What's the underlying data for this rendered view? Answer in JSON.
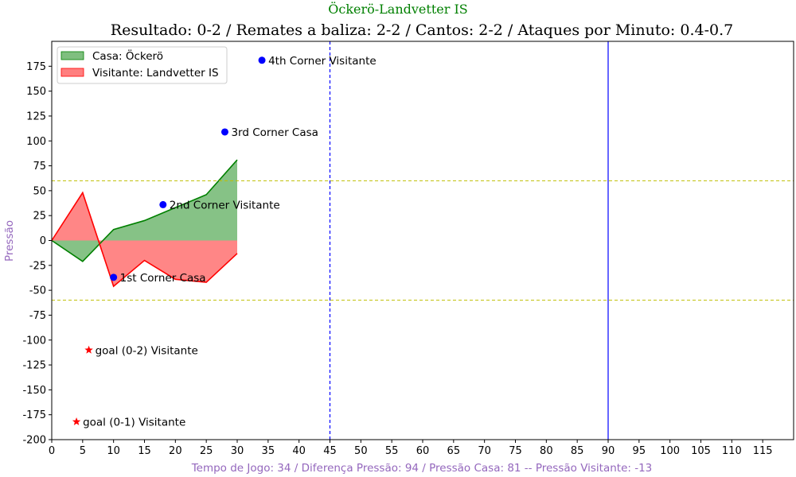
{
  "chart_data": {
    "type": "area",
    "suptitle": "Öckerö-Landvetter IS",
    "title": "Resultado: 0-2 / Remates a baliza: 2-2 / Cantos: 2-2 / Ataques por Minuto: 0.4-0.7",
    "xlabel": "Tempo de Jogo: 34 / Diferença Pressão: 94 / Pressão Casa: 81 -- Pressão Visitante: -13",
    "ylabel": "Pressão",
    "xlim": [
      0,
      120
    ],
    "ylim": [
      -200,
      200
    ],
    "xticks": [
      0,
      5,
      10,
      15,
      20,
      25,
      30,
      35,
      40,
      45,
      50,
      55,
      60,
      65,
      70,
      75,
      80,
      85,
      90,
      95,
      100,
      105,
      110,
      115
    ],
    "yticks": [
      -200,
      -175,
      -150,
      -125,
      -100,
      -75,
      -50,
      -25,
      0,
      25,
      50,
      75,
      100,
      125,
      150,
      175
    ],
    "x": [
      0,
      5,
      10,
      15,
      20,
      25,
      30
    ],
    "series": [
      {
        "name": "Casa: Öckerö",
        "values": [
          0,
          -21,
          11,
          20,
          33,
          46,
          81
        ],
        "color": "#008000",
        "fill": "#7fbf7f"
      },
      {
        "name": "Visitante: Landvetter IS",
        "values": [
          0,
          48,
          -46,
          -20,
          -39,
          -42,
          -13
        ],
        "color": "#ff0000",
        "fill": "#ff7f7f"
      }
    ],
    "hlines": [
      {
        "y": 60,
        "color": "#bfbf00",
        "style": "dashed"
      },
      {
        "y": -60,
        "color": "#bfbf00",
        "style": "dashed"
      }
    ],
    "vlines": [
      {
        "x": 45,
        "color": "#0000ff",
        "style": "dashed"
      },
      {
        "x": 90,
        "color": "#0000ff",
        "style": "solid"
      }
    ],
    "events": [
      {
        "x": 34,
        "y": 181,
        "label": "4th Corner Visitante",
        "marker": "circle",
        "color": "#0000ff"
      },
      {
        "x": 28,
        "y": 109,
        "label": "3rd Corner Casa",
        "marker": "circle",
        "color": "#0000ff"
      },
      {
        "x": 18,
        "y": 36,
        "label": "2nd Corner Visitante",
        "marker": "circle",
        "color": "#0000ff"
      },
      {
        "x": 10,
        "y": -37,
        "label": "1st Corner Casa",
        "marker": "circle",
        "color": "#0000ff"
      },
      {
        "x": 6,
        "y": -110,
        "label": "goal (0-2) Visitante",
        "marker": "star",
        "color": "#ff0000"
      },
      {
        "x": 4,
        "y": -182,
        "label": "goal (0-1) Visitante",
        "marker": "star",
        "color": "#ff0000"
      }
    ],
    "legend_position": "top-left",
    "grid": false
  },
  "colors": {
    "suptitle": "#008000",
    "axis_label": "#9467bd"
  }
}
